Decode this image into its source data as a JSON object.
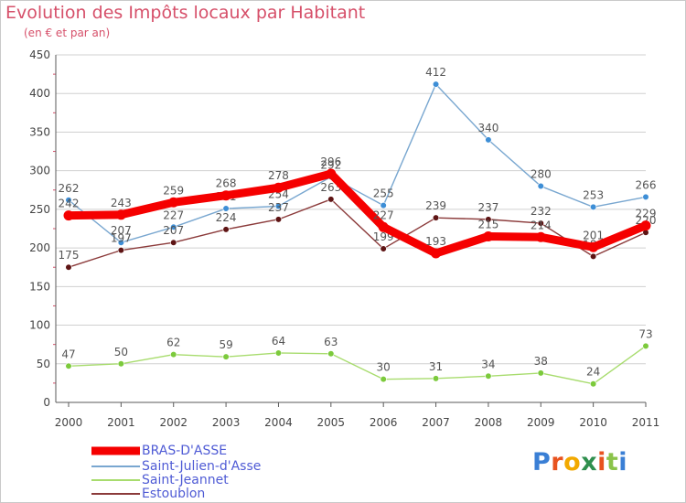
{
  "title": "Evolution des Impôts locaux par Habitant",
  "subtitle": "(en € et par an)",
  "logo": "Proxiti",
  "colors": {
    "title": "#d6506a",
    "axis": "#5a5a5a",
    "grid": "#d0d0d0",
    "legend_text": "#4f5bd5"
  },
  "chart_data": {
    "type": "line",
    "title": "Evolution des Impôts locaux par Habitant",
    "subtitle": "(en € et par an)",
    "xlabel": "",
    "ylabel": "",
    "ylim": [
      0,
      450
    ],
    "yticks": [
      0,
      50,
      100,
      150,
      200,
      250,
      300,
      350,
      400,
      450
    ],
    "grid": "horizontal",
    "legend_position": "bottom-left",
    "x": [
      "2000",
      "2001",
      "2002",
      "2003",
      "2004",
      "2005",
      "2006",
      "2007",
      "2008",
      "2009",
      "2010",
      "2011"
    ],
    "series": [
      {
        "key": "saint-julien",
        "name": "Saint-Julien-d'Asse",
        "color": "#79a7d0",
        "marker": "#3d8ed6",
        "values": [
          262,
          207,
          227,
          251,
          254,
          292,
          255,
          412,
          340,
          280,
          253,
          266
        ],
        "labels": [
          "262",
          "207",
          "227",
          "251",
          "254",
          "292",
          "255",
          "412",
          "340",
          "280",
          "253",
          "266"
        ]
      },
      {
        "key": "saint-jeannet",
        "name": "Saint-Jeannet",
        "color": "#a8dc6e",
        "marker": "#7cca3c",
        "values": [
          47,
          50,
          62,
          59,
          64,
          63,
          30,
          31,
          34,
          38,
          24,
          73
        ],
        "labels": [
          "47",
          "50",
          "62",
          "59",
          "64",
          "63",
          "30",
          "31",
          "34",
          "38",
          "24",
          "73"
        ]
      },
      {
        "key": "estoublon",
        "name": "Estoublon",
        "color": "#8b3a3a",
        "marker": "#5e1414",
        "values": [
          175,
          197,
          207,
          224,
          237,
          263,
          199,
          239,
          237,
          232,
          189,
          220
        ],
        "labels": [
          "175",
          "197",
          "207",
          "224",
          "237",
          "263",
          "199",
          "239",
          "237",
          "232",
          "189",
          "220"
        ]
      },
      {
        "key": "bras-dasse",
        "name": "BRAS-D'ASSE",
        "color": "#f50000",
        "marker": "#f50000",
        "values": [
          242,
          243,
          259,
          268,
          278,
          296,
          227,
          193,
          215,
          214,
          201,
          229
        ],
        "labels": [
          "242",
          "243",
          "259",
          "268",
          "278",
          "296",
          "227",
          "193",
          "215",
          "214",
          "201",
          "229"
        ]
      }
    ],
    "legend_order": [
      "bras-dasse",
      "saint-julien",
      "saint-jeannet",
      "estoublon"
    ]
  }
}
